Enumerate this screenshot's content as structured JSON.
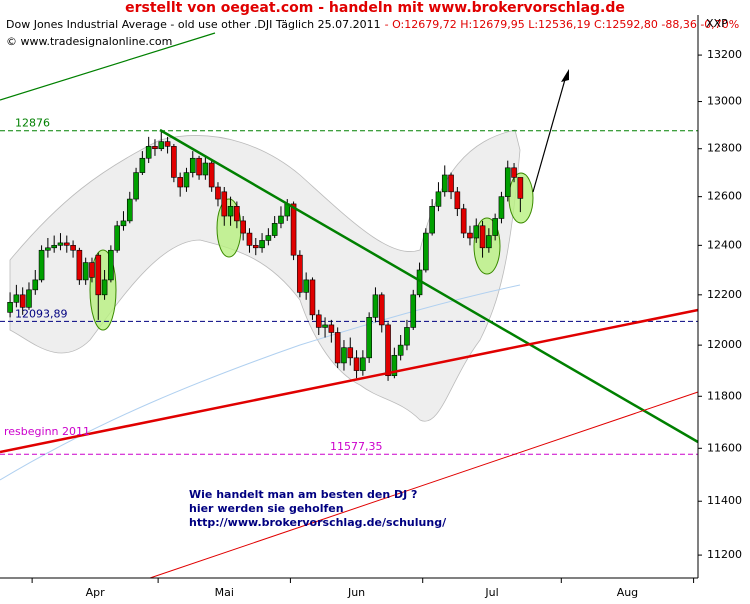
{
  "chart_data": {
    "type": "candlestick",
    "title": "erstellt von oegeat.com  - handeln mit  www.brokervorschlag.de",
    "subtitle": "Dow Jones Industrial Average - old use other .DJI Täglich  25.07.2011",
    "subtitle_quote": "- O:12679,72 H:12679,95 L:12536,19 C:12592,80 -88,36 -0,70%",
    "copyright": "© www.tradesignalonline.com",
    "axis_label": "XXP",
    "log_scale": true,
    "ylim": [
      11116,
      13375
    ],
    "yticks": [
      11200,
      11400,
      11600,
      11800,
      12000,
      12200,
      12400,
      12600,
      12800,
      13000,
      13200
    ],
    "xlim": [
      -1.6,
      109.2
    ],
    "xticks": [
      3.5,
      23.5,
      44.5,
      65.5,
      87.5,
      108.5
    ],
    "month_labels": [
      "Apr",
      "Mai",
      "Jun",
      "Jul",
      "Aug"
    ],
    "up_color": "#00a000",
    "down_color": "#e00000",
    "open": [
      12130,
      12170,
      12200,
      12150,
      12220,
      12260,
      12380,
      12390,
      12400,
      12410,
      12400,
      12380,
      12260,
      12330,
      12360,
      12200,
      12260,
      12380,
      12480,
      12500,
      12590,
      12700,
      12760,
      12810,
      12800,
      12830,
      12810,
      12680,
      12640,
      12700,
      12760,
      12690,
      12740,
      12640,
      12620,
      12520,
      12560,
      12500,
      12450,
      12400,
      12390,
      12420,
      12440,
      12490,
      12520,
      12570,
      12360,
      12210,
      12260,
      12120,
      12070,
      12080,
      12050,
      11930,
      11990,
      11950,
      11900,
      11950,
      12110,
      12200,
      12080,
      11880,
      11960,
      12000,
      12070,
      12200,
      12300,
      12450,
      12560,
      12620,
      12690,
      12620,
      12550,
      12450,
      12430,
      12480,
      12390,
      12440,
      12510,
      12600,
      12720,
      12679.72
    ],
    "high": [
      12210,
      12240,
      12230,
      12250,
      12300,
      12400,
      12430,
      12440,
      12450,
      12440,
      12420,
      12390,
      12350,
      12350,
      12370,
      12300,
      12400,
      12500,
      12540,
      12620,
      12720,
      12790,
      12850,
      12840,
      12876,
      12850,
      12820,
      12700,
      12720,
      12790,
      12770,
      12770,
      12750,
      12660,
      12640,
      12600,
      12580,
      12520,
      12470,
      12430,
      12450,
      12470,
      12520,
      12560,
      12590,
      12580,
      12380,
      12290,
      12270,
      12140,
      12110,
      12100,
      12070,
      12020,
      12030,
      11980,
      11980,
      12130,
      12230,
      12210,
      12090,
      11990,
      12040,
      12100,
      12220,
      12330,
      12470,
      12590,
      12660,
      12730,
      12700,
      12640,
      12570,
      12480,
      12510,
      12500,
      12470,
      12530,
      12620,
      12750,
      12740,
      12679.95
    ],
    "low": [
      12110,
      12150,
      12120,
      12140,
      12200,
      12250,
      12350,
      12370,
      12380,
      12370,
      12350,
      12240,
      12240,
      12250,
      12100,
      12180,
      12250,
      12370,
      12460,
      12490,
      12580,
      12690,
      12740,
      12770,
      12790,
      12780,
      12660,
      12600,
      12620,
      12680,
      12670,
      12670,
      12620,
      12560,
      12480,
      12480,
      12470,
      12420,
      12370,
      12360,
      12370,
      12400,
      12430,
      12470,
      12500,
      12340,
      12190,
      12180,
      12100,
      12040,
      12030,
      12010,
      11910,
      11900,
      11920,
      11870,
      11880,
      11930,
      12090,
      12050,
      11860,
      11870,
      11940,
      11980,
      12060,
      12190,
      12290,
      12440,
      12540,
      12600,
      12590,
      12520,
      12430,
      12400,
      12410,
      12350,
      12370,
      12420,
      12490,
      12580,
      12660,
      12536.19
    ],
    "close": [
      12170,
      12200,
      12150,
      12220,
      12260,
      12380,
      12390,
      12400,
      12410,
      12400,
      12380,
      12260,
      12330,
      12270,
      12200,
      12260,
      12380,
      12480,
      12500,
      12590,
      12700,
      12760,
      12810,
      12800,
      12830,
      12810,
      12680,
      12640,
      12700,
      12760,
      12690,
      12740,
      12640,
      12590,
      12520,
      12560,
      12500,
      12450,
      12400,
      12390,
      12420,
      12440,
      12490,
      12520,
      12570,
      12360,
      12210,
      12260,
      12120,
      12070,
      12080,
      12050,
      11930,
      11990,
      11950,
      11900,
      11950,
      12110,
      12200,
      12080,
      11880,
      11960,
      12000,
      12070,
      12200,
      12300,
      12450,
      12560,
      12620,
      12690,
      12620,
      12550,
      12450,
      12430,
      12480,
      12390,
      12440,
      12510,
      12600,
      12720,
      12680,
      12592.8
    ],
    "levels": [
      {
        "value": 12876,
        "color": "#008000"
      },
      {
        "value": 12093.89,
        "label": "12093,89",
        "color": "#000080"
      },
      {
        "value": 11577.35,
        "label": "11577,35",
        "color": "#cc00cc"
      }
    ],
    "side_note": "resbeginn 2011",
    "annotations": [
      "Wie handelt man am besten  den DJ ?",
      "hier werden sie geholfen",
      "http://www.brokervorschlag.de/schulung/"
    ]
  }
}
